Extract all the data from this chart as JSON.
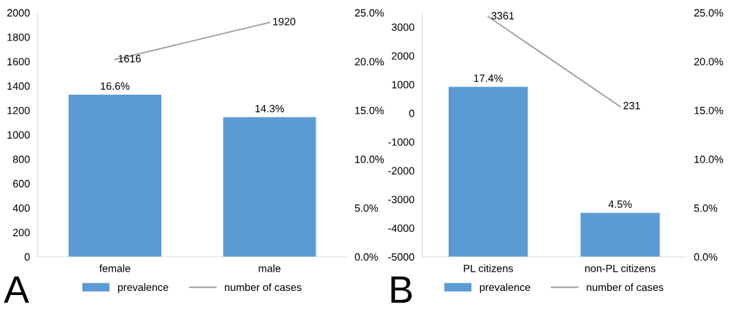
{
  "chart_data": [
    {
      "type": "bar",
      "categories": [
        "female",
        "male"
      ],
      "ylim": [
        0,
        2000
      ],
      "yticks": [
        0,
        200,
        400,
        600,
        800,
        1000,
        1200,
        1400,
        1600,
        1800,
        2000
      ],
      "y2lim": [
        0,
        25
      ],
      "y2ticks": [
        {
          "value": 0,
          "label": "0.0%"
        },
        {
          "value": 5,
          "label": "5.0%"
        },
        {
          "value": 10,
          "label": "10.0%"
        },
        {
          "value": 15,
          "label": "15.0%"
        },
        {
          "value": 20,
          "label": "20.0%"
        },
        {
          "value": 25,
          "label": "25.0%"
        }
      ],
      "legend": "bottom",
      "grid": false,
      "annotations": [
        "A"
      ],
      "series": [
        {
          "name": "prevalence",
          "axis": "y2",
          "color": "#5b9bd5",
          "values": [
            16.6,
            14.3
          ],
          "value_labels": [
            "16.6%",
            "14.3%"
          ]
        },
        {
          "name": "number of cases",
          "type": "line",
          "axis": "y",
          "color": "#a5a5a5",
          "values": [
            1616,
            1920
          ],
          "value_labels": [
            "1616",
            "1920"
          ]
        }
      ]
    },
    {
      "type": "bar",
      "categories": [
        "PL citizens",
        "non-PL citizens"
      ],
      "ylim": [
        -5000,
        3500
      ],
      "yticks": [
        -5000,
        -4000,
        -3000,
        -2000,
        -1000,
        0,
        1000,
        2000,
        3000
      ],
      "y2lim": [
        0,
        25
      ],
      "y2ticks": [
        {
          "value": 0,
          "label": "0.0%"
        },
        {
          "value": 5,
          "label": "5.0%"
        },
        {
          "value": 10,
          "label": "10.0%"
        },
        {
          "value": 15,
          "label": "15.0%"
        },
        {
          "value": 20,
          "label": "20.0%"
        },
        {
          "value": 25,
          "label": "25.0%"
        }
      ],
      "legend": "bottom",
      "grid": false,
      "annotations": [
        "B"
      ],
      "series": [
        {
          "name": "prevalence",
          "axis": "y2",
          "color": "#5b9bd5",
          "values": [
            17.4,
            4.5
          ],
          "value_labels": [
            "17.4%",
            "4.5%"
          ]
        },
        {
          "name": "number of cases",
          "type": "line",
          "axis": "y",
          "color": "#a5a5a5",
          "values": [
            3361,
            231
          ],
          "value_labels": [
            "3361",
            "231"
          ]
        }
      ]
    }
  ]
}
